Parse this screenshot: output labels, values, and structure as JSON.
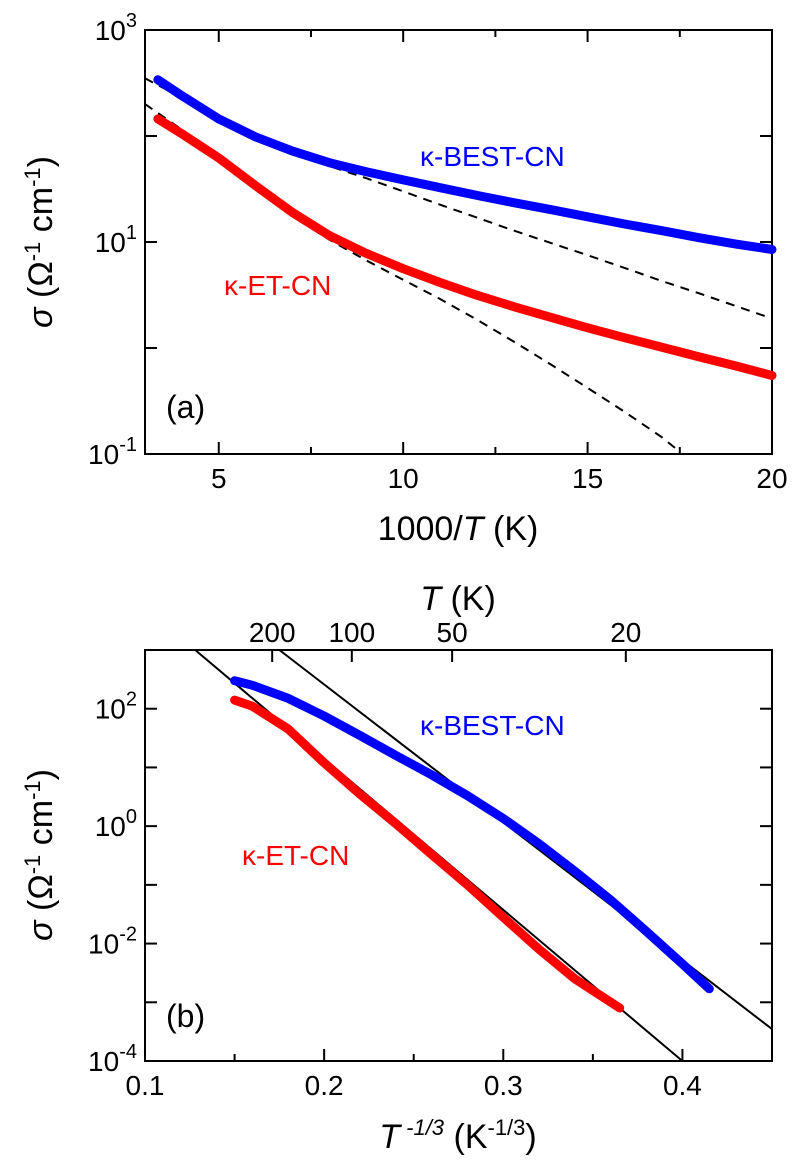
{
  "chart_data": [
    {
      "panel": "(a)",
      "type": "line",
      "xlabel": {
        "pre": "1000/",
        "italic": "T",
        "post": " (K)"
      },
      "ylabel": {
        "sigma": "σ",
        "rest": " (Ω",
        "exp": "-1",
        "mid": " cm",
        "exp2": "-1",
        "close": ")"
      },
      "xlim": [
        3,
        20
      ],
      "ylim": [
        0.1,
        1000
      ],
      "yscale": "log",
      "xticks": [
        5,
        10,
        15,
        20
      ],
      "xtick_labels": [
        "5",
        "10",
        "15",
        "20"
      ],
      "yticks": [
        {
          "value": 0.1,
          "base": "10",
          "exp": "-1"
        },
        {
          "value": 10,
          "base": "10",
          "exp": "1"
        },
        {
          "value": 1000,
          "base": "10",
          "exp": "3"
        }
      ],
      "series": [
        {
          "name": "κ-BEST-CN",
          "color": "#0000ff",
          "x": [
            3.35,
            4,
            5,
            6,
            7,
            8,
            9,
            10,
            11,
            12,
            13,
            14,
            15,
            16,
            17,
            18,
            19,
            20
          ],
          "y": [
            340,
            240,
            145,
            98,
            72,
            56,
            46,
            38.5,
            32.5,
            27.5,
            23.5,
            20.2,
            17.3,
            14.8,
            12.8,
            11,
            9.6,
            8.5
          ]
        },
        {
          "name": "κ-ET-CN",
          "color": "#ff0000",
          "x": [
            3.35,
            4,
            5,
            6,
            7,
            8,
            9,
            10,
            11,
            12,
            13,
            14,
            15,
            16,
            17,
            18,
            19,
            20
          ],
          "y": [
            145,
            105,
            62,
            34,
            19,
            11.5,
            7.8,
            5.6,
            4.15,
            3.15,
            2.45,
            1.95,
            1.55,
            1.25,
            1.02,
            0.83,
            0.68,
            0.55
          ]
        }
      ],
      "fits": [
        {
          "x": [
            3,
            4,
            5,
            6,
            7,
            8,
            9,
            10,
            11,
            12,
            13,
            14,
            15,
            16,
            17,
            18,
            19,
            20
          ],
          "y": [
            350,
            230,
            145,
            98,
            70,
            52,
            40,
            30,
            22.5,
            17,
            12.8,
            9.8,
            7.5,
            5.7,
            4.3,
            3.3,
            2.5,
            1.9
          ]
        },
        {
          "x": [
            3,
            4,
            5,
            6,
            7,
            8,
            9,
            10,
            11,
            12,
            13,
            14,
            15,
            16,
            17,
            17.5
          ],
          "y": [
            200,
            115,
            62,
            33,
            17.5,
            10.5,
            6.7,
            4.4,
            2.9,
            1.85,
            1.15,
            0.7,
            0.42,
            0.25,
            0.145,
            0.105
          ]
        }
      ]
    },
    {
      "panel": "(b)",
      "type": "line",
      "xlabel": {
        "italic": "T",
        "exp": " -1/3",
        "rest": " (K",
        "exp2": "-1/3",
        "close": ")"
      },
      "ylabel": {
        "sigma": "σ",
        "rest": " (Ω",
        "exp": "-1",
        "mid": " cm",
        "exp2": "-1",
        "close": ")"
      },
      "top_axis_label": {
        "italic": "T",
        "rest": " (K)"
      },
      "top_ticks": [
        200,
        100,
        50,
        20
      ],
      "top_tick_labels": [
        "200",
        "100",
        "50",
        "20"
      ],
      "xlim": [
        0.1,
        0.45
      ],
      "ylim": [
        0.0001,
        1000
      ],
      "yscale": "log",
      "xticks": [
        0.1,
        0.2,
        0.3,
        0.4
      ],
      "xtick_labels": [
        "0.1",
        "0.2",
        "0.3",
        "0.4"
      ],
      "yticks": [
        {
          "value": 0.0001,
          "base": "10",
          "exp": "-4"
        },
        {
          "value": 0.01,
          "base": "10",
          "exp": "-2"
        },
        {
          "value": 1,
          "base": "10",
          "exp": "0"
        },
        {
          "value": 100,
          "base": "10",
          "exp": "2"
        }
      ],
      "series": [
        {
          "name": "κ-BEST-CN",
          "color": "#0000ff",
          "x": [
            0.15,
            0.16,
            0.18,
            0.2,
            0.22,
            0.24,
            0.26,
            0.28,
            0.3,
            0.32,
            0.34,
            0.36,
            0.38,
            0.4,
            0.415
          ],
          "y": [
            300,
            250,
            150,
            75,
            35,
            16,
            7.5,
            3.3,
            1.35,
            0.5,
            0.17,
            0.055,
            0.016,
            0.0045,
            0.0017
          ]
        },
        {
          "name": "κ-ET-CN",
          "color": "#ff0000",
          "x": [
            0.15,
            0.16,
            0.18,
            0.2,
            0.22,
            0.24,
            0.26,
            0.28,
            0.3,
            0.32,
            0.34,
            0.365
          ],
          "y": [
            140,
            110,
            45,
            12,
            3.5,
            1.1,
            0.33,
            0.1,
            0.028,
            0.008,
            0.0025,
            0.0008
          ]
        }
      ],
      "fits": [
        {
          "x": [
            0.128,
            0.4
          ],
          "y": [
            1000,
            0.0001
          ]
        },
        {
          "x": [
            0.175,
            0.45
          ],
          "y": [
            1000,
            0.00035
          ]
        }
      ]
    }
  ],
  "labels": {
    "panel_a": "(a)",
    "panel_b": "(b)",
    "best_a": "κ-BEST-CN",
    "et_a": "κ-ET-CN",
    "best_b": "κ-BEST-CN",
    "et_b": "κ-ET-CN"
  },
  "colors": {
    "blue": "#0000ff",
    "red": "#ff0000",
    "fit": "#000000"
  }
}
